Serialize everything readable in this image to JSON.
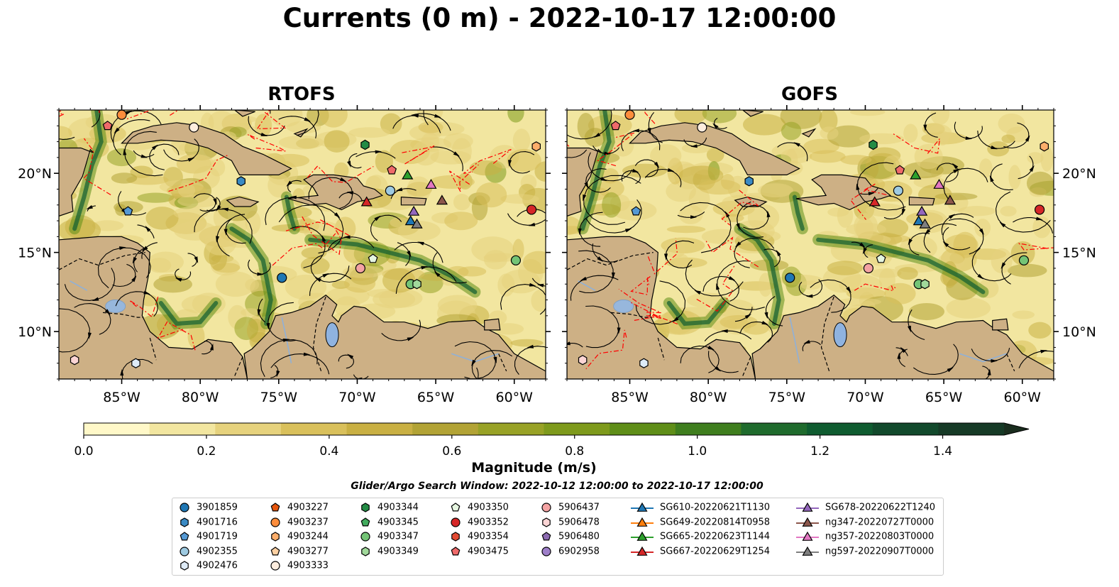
{
  "title": "Currents (0 m) - 2022-10-17 12:00:00",
  "chart_data": {
    "type": "heatmap",
    "panels": [
      {
        "title": "RTOFS"
      },
      {
        "title": "GOFS"
      }
    ],
    "x_ticks": [
      "85°W",
      "80°W",
      "75°W",
      "70°W",
      "65°W",
      "60°W"
    ],
    "x_tick_values": [
      -85,
      -80,
      -75,
      -70,
      -65,
      -60
    ],
    "y_ticks": [
      "20°N",
      "15°N",
      "10°N"
    ],
    "y_tick_values": [
      20,
      15,
      10
    ],
    "xlim": [
      -89,
      -58
    ],
    "ylim": [
      7,
      24
    ],
    "colorbar": {
      "label": "Magnitude (m/s)",
      "ticks": [
        "0.0",
        "0.2",
        "0.4",
        "0.6",
        "0.8",
        "1.0",
        "1.2",
        "1.4"
      ],
      "tick_values": [
        0,
        0.2,
        0.4,
        0.6,
        0.8,
        1.0,
        1.2,
        1.4
      ],
      "range": [
        0,
        1.5
      ],
      "extend": "max",
      "colors": [
        "#fff8c8",
        "#f2e6a0",
        "#e6d27d",
        "#d9c05b",
        "#c9b043",
        "#b2a335",
        "#98a226",
        "#7e9a1c",
        "#5f8e18",
        "#3f7e1e",
        "#1f6b2d",
        "#0f5c30",
        "#12492c",
        "#163a26",
        "#1a2d1e"
      ]
    },
    "land_color": "#cdb085",
    "window_note": "Glider/Argo Search Window: 2022-10-12 12:00:00 to 2022-10-17 12:00:00",
    "legend": [
      {
        "label": "3901859",
        "marker": "circle",
        "color": "#1f77b4"
      },
      {
        "label": "4901716",
        "marker": "hexagon",
        "color": "#3a8ac4"
      },
      {
        "label": "4901719",
        "marker": "pentagon",
        "color": "#5599d4"
      },
      {
        "label": "4902355",
        "marker": "circle",
        "color": "#9ecae1"
      },
      {
        "label": "4902476",
        "marker": "hexagon",
        "color": "#deebf7"
      },
      {
        "label": "4903227",
        "marker": "pentagon",
        "color": "#e6550d"
      },
      {
        "label": "4903237",
        "marker": "circle",
        "color": "#fd8d3c"
      },
      {
        "label": "4903244",
        "marker": "hexagon",
        "color": "#fdae6b"
      },
      {
        "label": "4903277",
        "marker": "pentagon",
        "color": "#fdd0a2"
      },
      {
        "label": "4903333",
        "marker": "circle",
        "color": "#feedde"
      },
      {
        "label": "4903344",
        "marker": "hexagon",
        "color": "#238b45"
      },
      {
        "label": "4903345",
        "marker": "pentagon",
        "color": "#41ab5d"
      },
      {
        "label": "4903347",
        "marker": "circle",
        "color": "#74c476"
      },
      {
        "label": "4903349",
        "marker": "hexagon",
        "color": "#a1d99b"
      },
      {
        "label": "4903350",
        "marker": "pentagon",
        "color": "#e5f5e0"
      },
      {
        "label": "4903352",
        "marker": "circle",
        "color": "#d62728"
      },
      {
        "label": "4903354",
        "marker": "hexagon",
        "color": "#e34a33"
      },
      {
        "label": "4903475",
        "marker": "pentagon",
        "color": "#ef6a6a"
      },
      {
        "label": "5906437",
        "marker": "circle",
        "color": "#f4a3a3"
      },
      {
        "label": "5906478",
        "marker": "hexagon",
        "color": "#fcd5d5"
      },
      {
        "label": "5906480",
        "marker": "pentagon",
        "color": "#8c6bb1"
      },
      {
        "label": "6902958",
        "marker": "circle",
        "color": "#9e7fc9"
      },
      {
        "label": "SG610-20220621T1130",
        "marker": "triangle",
        "color": "#1f77b4"
      },
      {
        "label": "SG649-20220814T0958",
        "marker": "triangle",
        "color": "#ff7f0e"
      },
      {
        "label": "SG665-20220623T1144",
        "marker": "triangle",
        "color": "#2ca02c"
      },
      {
        "label": "SG667-20220629T1254",
        "marker": "triangle",
        "color": "#d62728"
      },
      {
        "label": "SG678-20220622T1240",
        "marker": "triangle",
        "color": "#9467bd"
      },
      {
        "label": "ng347-20220727T0000",
        "marker": "triangle",
        "color": "#8c564b"
      },
      {
        "label": "ng357-20220803T0000",
        "marker": "triangle",
        "color": "#e377c2"
      },
      {
        "label": "ng597-20220907T0000",
        "marker": "triangle",
        "color": "#7f7f7f"
      }
    ],
    "markers": [
      {
        "lon": -85.9,
        "lat": 23.0,
        "ref": "4903475"
      },
      {
        "lon": -85.0,
        "lat": 23.7,
        "ref": "4903237"
      },
      {
        "lon": -80.4,
        "lat": 22.9,
        "ref": "4903333"
      },
      {
        "lon": -77.4,
        "lat": 19.5,
        "ref": "4901716"
      },
      {
        "lon": -84.6,
        "lat": 17.6,
        "ref": "4901719"
      },
      {
        "lon": -74.8,
        "lat": 13.4,
        "ref": "3901859"
      },
      {
        "lon": -69.5,
        "lat": 21.8,
        "ref": "4903344"
      },
      {
        "lon": -67.8,
        "lat": 20.2,
        "ref": "4903475"
      },
      {
        "lon": -66.8,
        "lat": 19.9,
        "ref": "SG665-20220623T1144"
      },
      {
        "lon": -67.9,
        "lat": 18.9,
        "ref": "4902355"
      },
      {
        "lon": -69.4,
        "lat": 18.2,
        "ref": "SG667-20220629T1254"
      },
      {
        "lon": -65.3,
        "lat": 19.3,
        "ref": "ng357-20220803T0000"
      },
      {
        "lon": -64.6,
        "lat": 18.3,
        "ref": "ng347-20220727T0000"
      },
      {
        "lon": -66.4,
        "lat": 17.6,
        "ref": "SG678-20220622T1240"
      },
      {
        "lon": -66.6,
        "lat": 17.0,
        "ref": "SG610-20220621T1130"
      },
      {
        "lon": -66.2,
        "lat": 16.8,
        "ref": "ng597-20220907T0000"
      },
      {
        "lon": -58.9,
        "lat": 17.7,
        "ref": "4903352"
      },
      {
        "lon": -58.6,
        "lat": 21.7,
        "ref": "4903244"
      },
      {
        "lon": -69.8,
        "lat": 14.0,
        "ref": "5906437"
      },
      {
        "lon": -69.0,
        "lat": 14.6,
        "ref": "4903350"
      },
      {
        "lon": -66.6,
        "lat": 13.0,
        "ref": "4903347"
      },
      {
        "lon": -66.2,
        "lat": 13.0,
        "ref": "4903349"
      },
      {
        "lon": -59.9,
        "lat": 14.5,
        "ref": "4903347"
      },
      {
        "lon": -88.0,
        "lat": 8.2,
        "ref": "5906478"
      },
      {
        "lon": -84.1,
        "lat": 8.0,
        "ref": "4902476"
      }
    ]
  }
}
